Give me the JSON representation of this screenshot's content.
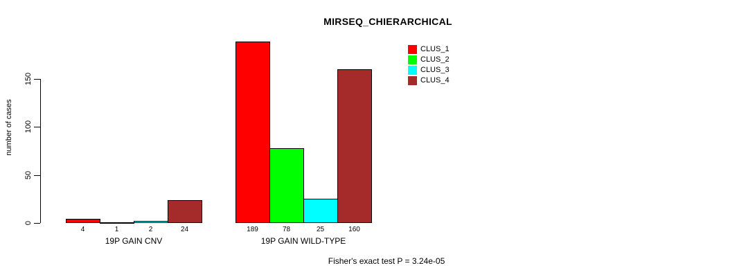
{
  "chart_data": {
    "type": "bar",
    "title": "MIRSEQ_CHIERARCHICAL",
    "ylabel": "number of cases",
    "xlabel": "",
    "ylim": [
      0,
      189
    ],
    "yticks": [
      0,
      50,
      100,
      150
    ],
    "grid": false,
    "legend_position": "top-right",
    "categories": [
      "19P GAIN CNV",
      "19P GAIN WILD-TYPE"
    ],
    "series": [
      {
        "name": "CLUS_1",
        "color": "#ff0000",
        "values": [
          4,
          189
        ]
      },
      {
        "name": "CLUS_2",
        "color": "#00ff00",
        "values": [
          1,
          78
        ]
      },
      {
        "name": "CLUS_3",
        "color": "#00ffff",
        "values": [
          2,
          25
        ]
      },
      {
        "name": "CLUS_4",
        "color": "#a52a2a",
        "values": [
          24,
          160
        ]
      }
    ],
    "bar_value_labels": {
      "19P GAIN CNV": [
        4,
        1,
        2,
        24
      ],
      "19P GAIN WILD-TYPE": [
        189,
        78,
        25,
        160
      ]
    },
    "annotation": "Fisher's exact test P = 3.24e-05"
  }
}
